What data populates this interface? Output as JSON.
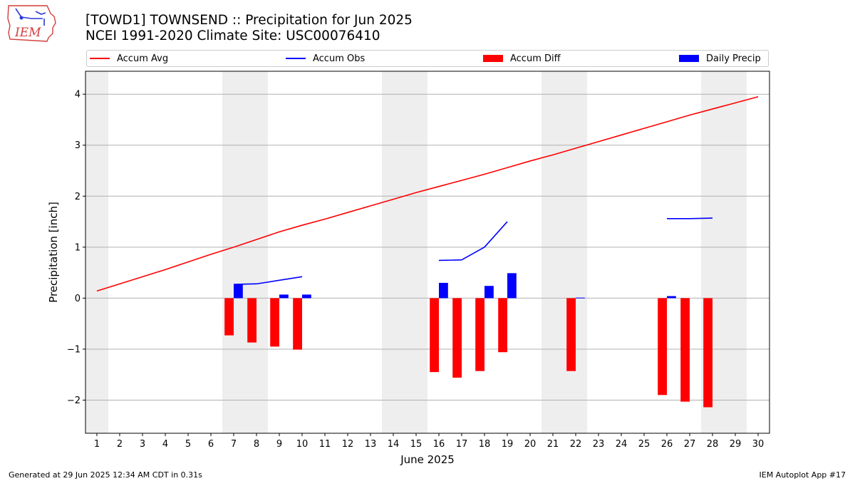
{
  "header": {
    "title": "[TOWD1] TOWNSEND :: Precipitation for Jun 2025",
    "subtitle": "NCEI 1991-2020 Climate Site: USC00076410",
    "logo_text": "IEM"
  },
  "footer": {
    "generated": "Generated at 29 Jun 2025 12:34 AM CDT in 0.31s",
    "app": "IEM Autoplot App #17"
  },
  "colors": {
    "avg": "#ff0000",
    "obs": "#0000ff",
    "diff": "#ff0000",
    "daily": "#0000ff",
    "weekend": "#eeeeee",
    "grid": "#b0b0b0"
  },
  "chart_data": {
    "type": "bar",
    "xlabel": "June 2025",
    "ylabel": "Precipitation [inch]",
    "xlim": [
      0.5,
      30.5
    ],
    "ylim": [
      -2.65,
      4.45
    ],
    "yticks": [
      4,
      3,
      2,
      1,
      0,
      -1,
      -2
    ],
    "ytick_labels": [
      "4",
      "3",
      "2",
      "1",
      "0",
      "−1",
      "−2"
    ],
    "x": [
      1,
      2,
      3,
      4,
      5,
      6,
      7,
      8,
      9,
      10,
      11,
      12,
      13,
      14,
      15,
      16,
      17,
      18,
      19,
      20,
      21,
      22,
      23,
      24,
      25,
      26,
      27,
      28,
      29,
      30
    ],
    "xtick_labels": [
      "1",
      "2",
      "3",
      "4",
      "5",
      "6",
      "7",
      "8",
      "9",
      "10",
      "11",
      "12",
      "13",
      "14",
      "15",
      "16",
      "17",
      "18",
      "19",
      "20",
      "21",
      "22",
      "23",
      "24",
      "25",
      "26",
      "27",
      "28",
      "29",
      "30"
    ],
    "weekend_days": [
      1,
      7,
      8,
      14,
      15,
      21,
      22,
      28,
      29
    ],
    "grid": true,
    "legend": {
      "placement": "top",
      "entries": [
        {
          "label": "Accum Avg",
          "kind": "line",
          "color": "#ff0000"
        },
        {
          "label": "Accum Obs",
          "kind": "line",
          "color": "#0000ff"
        },
        {
          "label": "Accum Diff",
          "kind": "bar",
          "color": "#ff0000"
        },
        {
          "label": "Daily Precip",
          "kind": "bar",
          "color": "#0000ff"
        }
      ]
    },
    "series": [
      {
        "name": "Accum Avg",
        "kind": "line",
        "color": "#ff0000",
        "values": [
          0.14,
          0.28,
          0.42,
          0.56,
          0.71,
          0.86,
          1.0,
          1.15,
          1.3,
          1.43,
          1.55,
          1.68,
          1.81,
          1.94,
          2.07,
          2.19,
          2.31,
          2.43,
          2.56,
          2.69,
          2.81,
          2.94,
          3.07,
          3.2,
          3.33,
          3.46,
          3.59,
          3.71,
          3.83,
          3.95
        ]
      },
      {
        "name": "Accum Obs",
        "kind": "line",
        "color": "#0000ff",
        "values": [
          null,
          null,
          null,
          null,
          null,
          null,
          0.27,
          0.28,
          0.35,
          0.42,
          null,
          null,
          null,
          null,
          null,
          0.74,
          0.75,
          1.0,
          1.5,
          null,
          null,
          null,
          null,
          null,
          null,
          1.56,
          1.56,
          1.57,
          null,
          null
        ]
      },
      {
        "name": "Accum Diff",
        "kind": "bar",
        "color": "#ff0000",
        "values": [
          null,
          null,
          null,
          null,
          null,
          null,
          -0.73,
          -0.87,
          -0.95,
          -1.01,
          null,
          null,
          null,
          null,
          null,
          -1.45,
          -1.56,
          -1.43,
          -1.06,
          null,
          null,
          -1.43,
          null,
          null,
          null,
          -1.9,
          -2.03,
          -2.14,
          null,
          null
        ]
      },
      {
        "name": "Daily Precip",
        "kind": "bar",
        "color": "#0000ff",
        "values": [
          null,
          null,
          null,
          null,
          null,
          null,
          0.27,
          null,
          0.07,
          0.07,
          null,
          null,
          null,
          null,
          null,
          0.3,
          null,
          0.24,
          0.49,
          null,
          null,
          0.01,
          null,
          null,
          null,
          0.04,
          null,
          null,
          null,
          null
        ]
      }
    ]
  }
}
